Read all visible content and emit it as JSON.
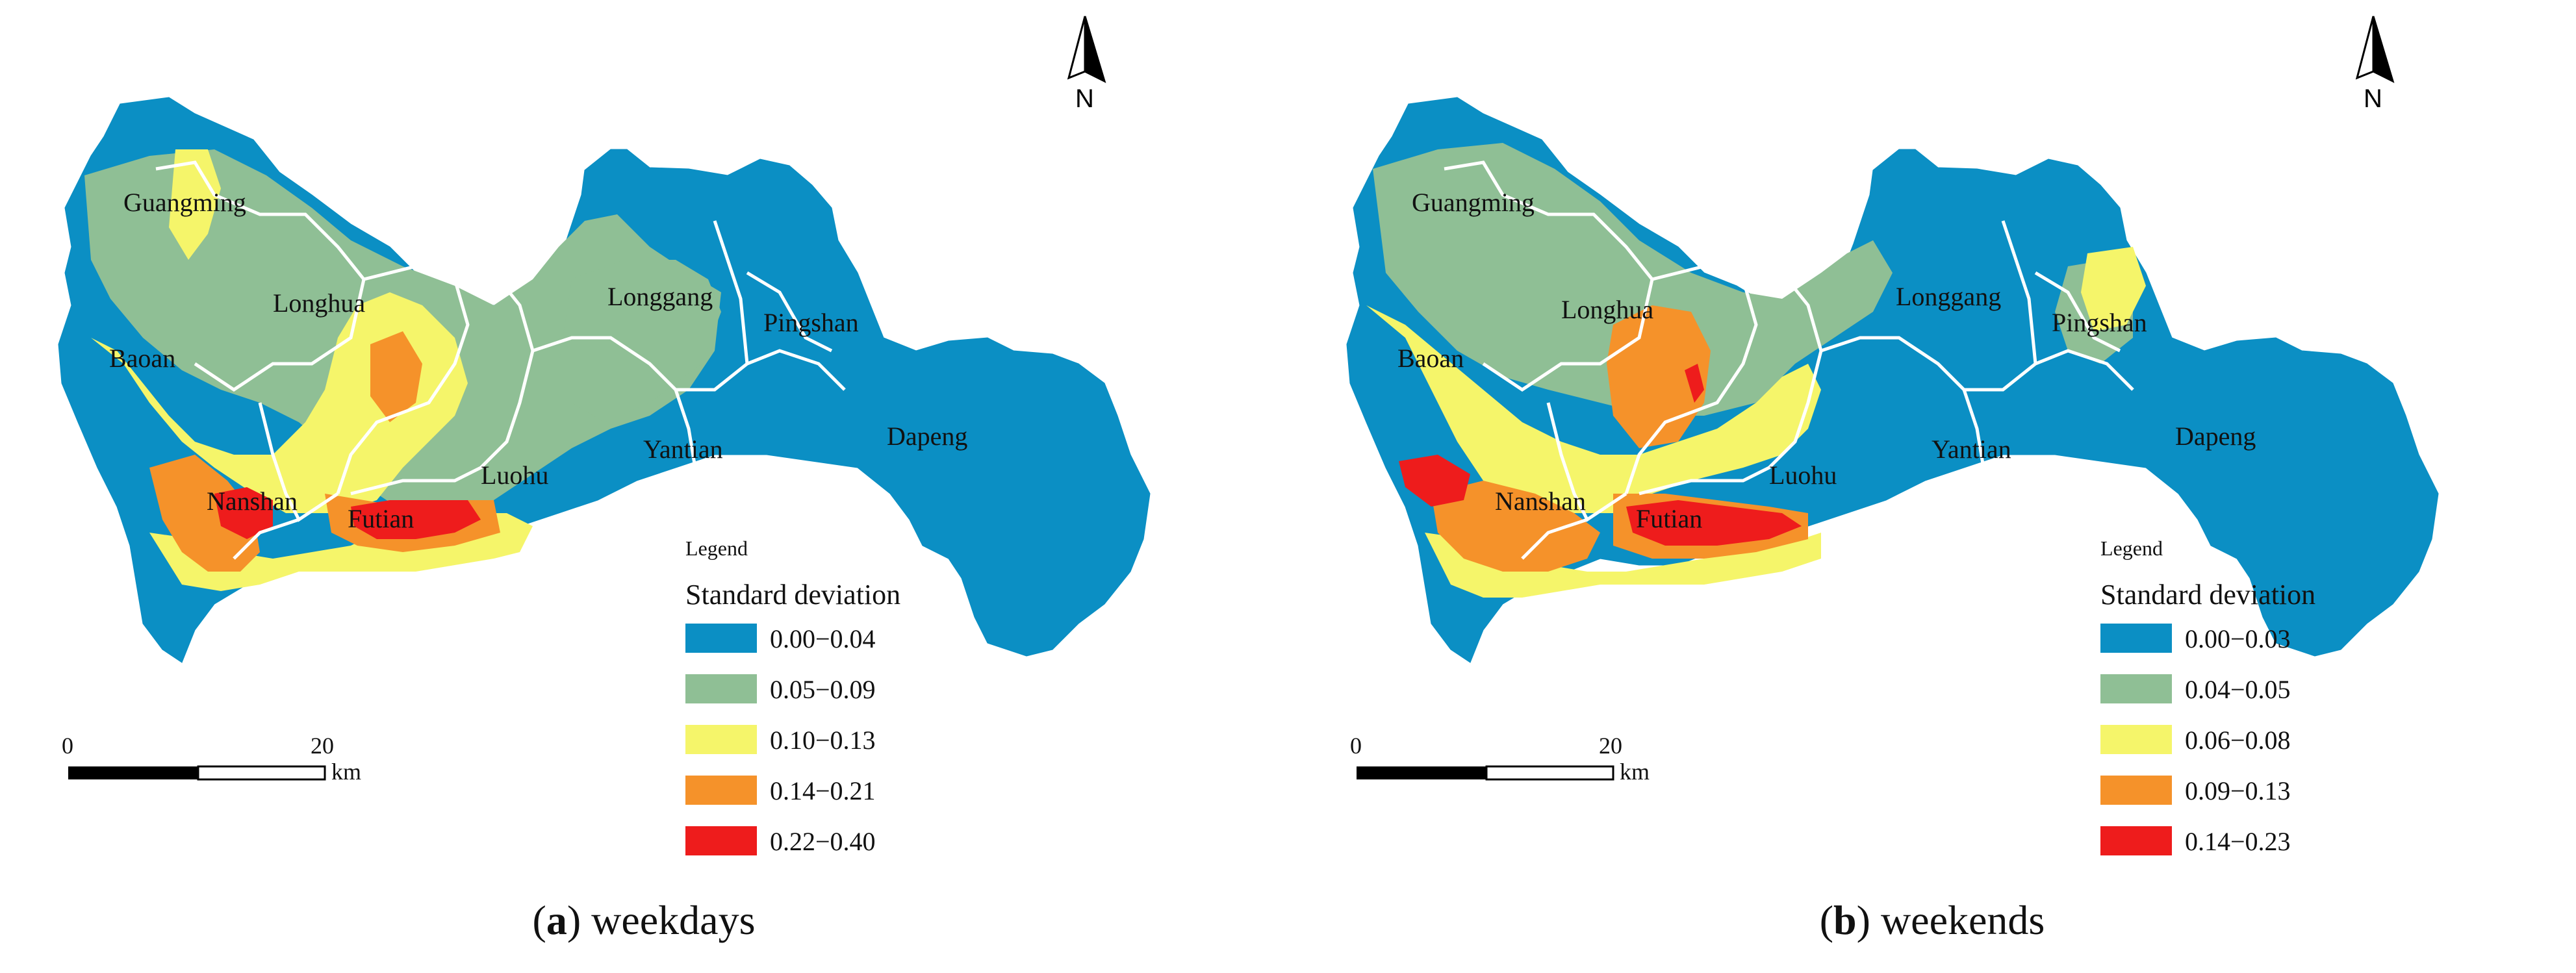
{
  "panels": [
    {
      "letter": "a",
      "caption": "weekdays",
      "north": "N",
      "legend": {
        "title": "Legend",
        "subtitle": "Standard deviation",
        "classes": [
          {
            "label": "0.00−0.04",
            "color": "#0b8fc4"
          },
          {
            "label": "0.05−0.09",
            "color": "#8fbf95"
          },
          {
            "label": "0.10−0.13",
            "color": "#f5f56a"
          },
          {
            "label": "0.14−0.21",
            "color": "#f5922a"
          },
          {
            "label": "0.22−0.40",
            "color": "#ee1c1c"
          }
        ]
      },
      "scale": {
        "start": "0",
        "mid": "20",
        "unit": "km"
      },
      "districts": [
        "Guangming",
        "Longhua",
        "Longgang",
        "Pingshan",
        "Baoan",
        "Yantian",
        "Dapeng",
        "Luohu",
        "Nanshan",
        "Futian"
      ]
    },
    {
      "letter": "b",
      "caption": "weekends",
      "north": "N",
      "legend": {
        "title": "Legend",
        "subtitle": "Standard deviation",
        "classes": [
          {
            "label": "0.00−0.03",
            "color": "#0b8fc4"
          },
          {
            "label": "0.04−0.05",
            "color": "#8fbf95"
          },
          {
            "label": "0.06−0.08",
            "color": "#f5f56a"
          },
          {
            "label": "0.09−0.13",
            "color": "#f5922a"
          },
          {
            "label": "0.14−0.23",
            "color": "#ee1c1c"
          }
        ]
      },
      "scale": {
        "start": "0",
        "mid": "20",
        "unit": "km"
      },
      "districts": [
        "Guangming",
        "Longhua",
        "Longgang",
        "Pingshan",
        "Baoan",
        "Yantian",
        "Dapeng",
        "Luohu",
        "Nanshan",
        "Futian"
      ]
    }
  ]
}
